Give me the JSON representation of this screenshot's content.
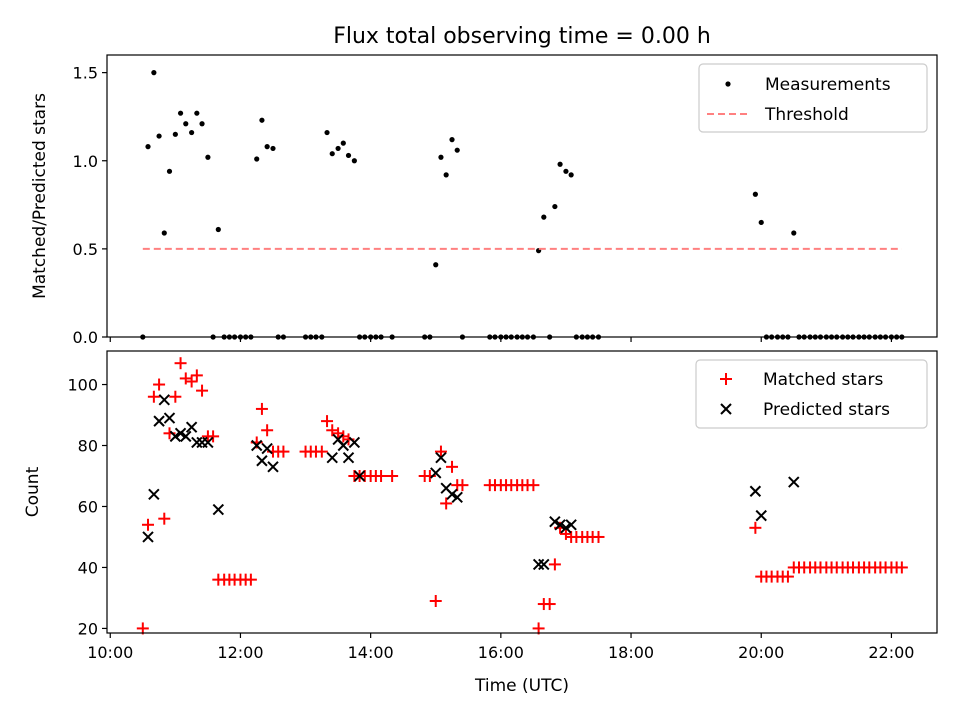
{
  "figure": {
    "title": "Flux total observing time = 0.00 h"
  },
  "chart_data": [
    {
      "type": "scatter",
      "ylabel": "Matched/Predicted stars",
      "xlim": [
        9.95,
        22.7
      ],
      "ylim": [
        0,
        1.6
      ],
      "yticks": [
        0.0,
        0.5,
        1.0,
        1.5
      ],
      "ytick_labels": [
        "0.0",
        "0.5",
        "1.0",
        "1.5"
      ],
      "legend_position": "top-right",
      "grid": false,
      "series": [
        {
          "name": "Measurements",
          "marker": "dot",
          "color": "#000000",
          "points": [
            [
              10.5,
              0
            ],
            [
              10.58,
              1.08
            ],
            [
              10.67,
              1.5
            ],
            [
              10.75,
              1.14
            ],
            [
              10.83,
              0.59
            ],
            [
              10.91,
              0.94
            ],
            [
              11.0,
              1.15
            ],
            [
              11.08,
              1.27
            ],
            [
              11.16,
              1.21
            ],
            [
              11.25,
              1.16
            ],
            [
              11.33,
              1.27
            ],
            [
              11.41,
              1.21
            ],
            [
              11.5,
              1.02
            ],
            [
              11.58,
              0
            ],
            [
              11.66,
              0.61
            ],
            [
              11.75,
              0
            ],
            [
              11.83,
              0
            ],
            [
              11.91,
              0
            ],
            [
              12.0,
              0
            ],
            [
              12.08,
              0
            ],
            [
              12.16,
              0
            ],
            [
              12.25,
              1.01
            ],
            [
              12.33,
              1.23
            ],
            [
              12.41,
              1.08
            ],
            [
              12.5,
              1.07
            ],
            [
              12.58,
              0
            ],
            [
              12.66,
              0
            ],
            [
              13.0,
              0
            ],
            [
              13.08,
              0
            ],
            [
              13.16,
              0
            ],
            [
              13.25,
              0
            ],
            [
              13.33,
              1.16
            ],
            [
              13.41,
              1.04
            ],
            [
              13.5,
              1.07
            ],
            [
              13.58,
              1.1
            ],
            [
              13.66,
              1.03
            ],
            [
              13.75,
              1.0
            ],
            [
              13.83,
              0
            ],
            [
              13.91,
              0
            ],
            [
              14.0,
              0
            ],
            [
              14.08,
              0
            ],
            [
              14.16,
              0
            ],
            [
              14.33,
              0
            ],
            [
              14.83,
              0
            ],
            [
              14.91,
              0
            ],
            [
              15.0,
              0.41
            ],
            [
              15.08,
              1.02
            ],
            [
              15.16,
              0.92
            ],
            [
              15.25,
              1.12
            ],
            [
              15.33,
              1.06
            ],
            [
              15.41,
              0
            ],
            [
              15.83,
              0
            ],
            [
              15.91,
              0
            ],
            [
              16.0,
              0
            ],
            [
              16.08,
              0
            ],
            [
              16.16,
              0
            ],
            [
              16.25,
              0
            ],
            [
              16.33,
              0
            ],
            [
              16.41,
              0
            ],
            [
              16.5,
              0
            ],
            [
              16.58,
              0.49
            ],
            [
              16.66,
              0.68
            ],
            [
              16.75,
              0
            ],
            [
              16.83,
              0.74
            ],
            [
              16.91,
              0.98
            ],
            [
              17.0,
              0.94
            ],
            [
              17.08,
              0.92
            ],
            [
              17.16,
              0
            ],
            [
              17.25,
              0
            ],
            [
              17.33,
              0
            ],
            [
              17.41,
              0
            ],
            [
              17.5,
              0
            ],
            [
              19.91,
              0.81
            ],
            [
              20.0,
              0.65
            ],
            [
              20.08,
              0
            ],
            [
              20.16,
              0
            ],
            [
              20.25,
              0
            ],
            [
              20.33,
              0
            ],
            [
              20.41,
              0
            ],
            [
              20.5,
              0.59
            ],
            [
              20.58,
              0
            ],
            [
              20.66,
              0
            ],
            [
              20.75,
              0
            ],
            [
              20.83,
              0
            ],
            [
              20.91,
              0
            ],
            [
              21.0,
              0
            ],
            [
              21.08,
              0
            ],
            [
              21.16,
              0
            ],
            [
              21.25,
              0
            ],
            [
              21.33,
              0
            ],
            [
              21.41,
              0
            ],
            [
              21.5,
              0
            ],
            [
              21.58,
              0
            ],
            [
              21.66,
              0
            ],
            [
              21.75,
              0
            ],
            [
              21.83,
              0
            ],
            [
              21.91,
              0
            ],
            [
              22.0,
              0
            ],
            [
              22.08,
              0
            ],
            [
              22.16,
              0
            ]
          ]
        },
        {
          "name": "Threshold",
          "marker": "dashed-line",
          "color": "#ff8080",
          "points": [
            [
              10.5,
              0.5
            ],
            [
              22.16,
              0.5
            ]
          ]
        }
      ]
    },
    {
      "type": "scatter",
      "xlabel": "Time (UTC)",
      "ylabel": "Count",
      "xlim": [
        9.95,
        22.7
      ],
      "ylim": [
        18.5,
        111
      ],
      "xticks": [
        10,
        12,
        14,
        16,
        18,
        20,
        22
      ],
      "xtick_labels": [
        "10:00",
        "12:00",
        "14:00",
        "16:00",
        "18:00",
        "20:00",
        "22:00"
      ],
      "yticks": [
        20,
        40,
        60,
        80,
        100
      ],
      "ytick_labels": [
        "20",
        "40",
        "60",
        "80",
        "100"
      ],
      "legend_position": "top-right",
      "grid": false,
      "series": [
        {
          "name": "Matched stars",
          "marker": "plus",
          "color": "#ff0000",
          "points": [
            [
              10.5,
              20
            ],
            [
              10.58,
              54
            ],
            [
              10.67,
              96
            ],
            [
              10.75,
              100
            ],
            [
              10.83,
              56
            ],
            [
              10.91,
              84
            ],
            [
              11.0,
              96
            ],
            [
              11.08,
              107
            ],
            [
              11.16,
              102
            ],
            [
              11.25,
              101
            ],
            [
              11.33,
              103
            ],
            [
              11.41,
              98
            ],
            [
              11.5,
              83
            ],
            [
              11.58,
              83
            ],
            [
              11.66,
              36
            ],
            [
              11.75,
              36
            ],
            [
              11.83,
              36
            ],
            [
              11.91,
              36
            ],
            [
              12.0,
              36
            ],
            [
              12.08,
              36
            ],
            [
              12.16,
              36
            ],
            [
              12.25,
              81
            ],
            [
              12.33,
              92
            ],
            [
              12.41,
              85
            ],
            [
              12.5,
              78
            ],
            [
              12.58,
              78
            ],
            [
              12.66,
              78
            ],
            [
              13.0,
              78
            ],
            [
              13.08,
              78
            ],
            [
              13.16,
              78
            ],
            [
              13.25,
              78
            ],
            [
              13.33,
              88
            ],
            [
              13.41,
              85
            ],
            [
              13.5,
              84
            ],
            [
              13.58,
              83
            ],
            [
              13.66,
              82
            ],
            [
              13.75,
              70
            ],
            [
              13.83,
              70
            ],
            [
              13.91,
              70
            ],
            [
              14.0,
              70
            ],
            [
              14.08,
              70
            ],
            [
              14.16,
              70
            ],
            [
              14.33,
              70
            ],
            [
              14.83,
              70
            ],
            [
              14.91,
              70
            ],
            [
              15.0,
              29
            ],
            [
              15.08,
              78
            ],
            [
              15.16,
              61
            ],
            [
              15.25,
              73
            ],
            [
              15.33,
              67
            ],
            [
              15.41,
              67
            ],
            [
              15.83,
              67
            ],
            [
              15.91,
              67
            ],
            [
              16.0,
              67
            ],
            [
              16.08,
              67
            ],
            [
              16.16,
              67
            ],
            [
              16.25,
              67
            ],
            [
              16.33,
              67
            ],
            [
              16.41,
              67
            ],
            [
              16.5,
              67
            ],
            [
              16.58,
              20
            ],
            [
              16.66,
              28
            ],
            [
              16.75,
              28
            ],
            [
              16.83,
              41
            ],
            [
              16.91,
              53
            ],
            [
              17.0,
              51
            ],
            [
              17.08,
              50
            ],
            [
              17.16,
              50
            ],
            [
              17.25,
              50
            ],
            [
              17.33,
              50
            ],
            [
              17.41,
              50
            ],
            [
              17.5,
              50
            ],
            [
              19.91,
              53
            ],
            [
              20.0,
              37
            ],
            [
              20.08,
              37
            ],
            [
              20.16,
              37
            ],
            [
              20.25,
              37
            ],
            [
              20.33,
              37
            ],
            [
              20.41,
              37
            ],
            [
              20.5,
              40
            ],
            [
              20.58,
              40
            ],
            [
              20.66,
              40
            ],
            [
              20.75,
              40
            ],
            [
              20.83,
              40
            ],
            [
              20.91,
              40
            ],
            [
              21.0,
              40
            ],
            [
              21.08,
              40
            ],
            [
              21.16,
              40
            ],
            [
              21.25,
              40
            ],
            [
              21.33,
              40
            ],
            [
              21.41,
              40
            ],
            [
              21.5,
              40
            ],
            [
              21.58,
              40
            ],
            [
              21.66,
              40
            ],
            [
              21.75,
              40
            ],
            [
              21.83,
              40
            ],
            [
              21.91,
              40
            ],
            [
              22.0,
              40
            ],
            [
              22.08,
              40
            ],
            [
              22.16,
              40
            ]
          ]
        },
        {
          "name": "Predicted stars",
          "marker": "x",
          "color": "#000000",
          "points": [
            [
              10.58,
              50
            ],
            [
              10.67,
              64
            ],
            [
              10.75,
              88
            ],
            [
              10.83,
              95
            ],
            [
              10.91,
              89
            ],
            [
              11.0,
              83
            ],
            [
              11.08,
              84
            ],
            [
              11.16,
              83
            ],
            [
              11.25,
              86
            ],
            [
              11.33,
              81
            ],
            [
              11.41,
              81
            ],
            [
              11.5,
              81
            ],
            [
              11.66,
              59
            ],
            [
              12.25,
              80
            ],
            [
              12.33,
              75
            ],
            [
              12.41,
              79
            ],
            [
              12.5,
              73
            ],
            [
              13.41,
              76
            ],
            [
              13.5,
              82
            ],
            [
              13.58,
              80
            ],
            [
              13.66,
              76
            ],
            [
              13.75,
              81
            ],
            [
              13.83,
              70
            ],
            [
              15.0,
              71
            ],
            [
              15.08,
              76
            ],
            [
              15.16,
              66
            ],
            [
              15.25,
              64
            ],
            [
              15.33,
              63
            ],
            [
              16.58,
              41
            ],
            [
              16.66,
              41
            ],
            [
              16.83,
              55
            ],
            [
              16.91,
              54
            ],
            [
              17.0,
              53
            ],
            [
              17.08,
              54
            ],
            [
              19.91,
              65
            ],
            [
              20.0,
              57
            ],
            [
              20.5,
              68
            ]
          ]
        }
      ]
    }
  ]
}
